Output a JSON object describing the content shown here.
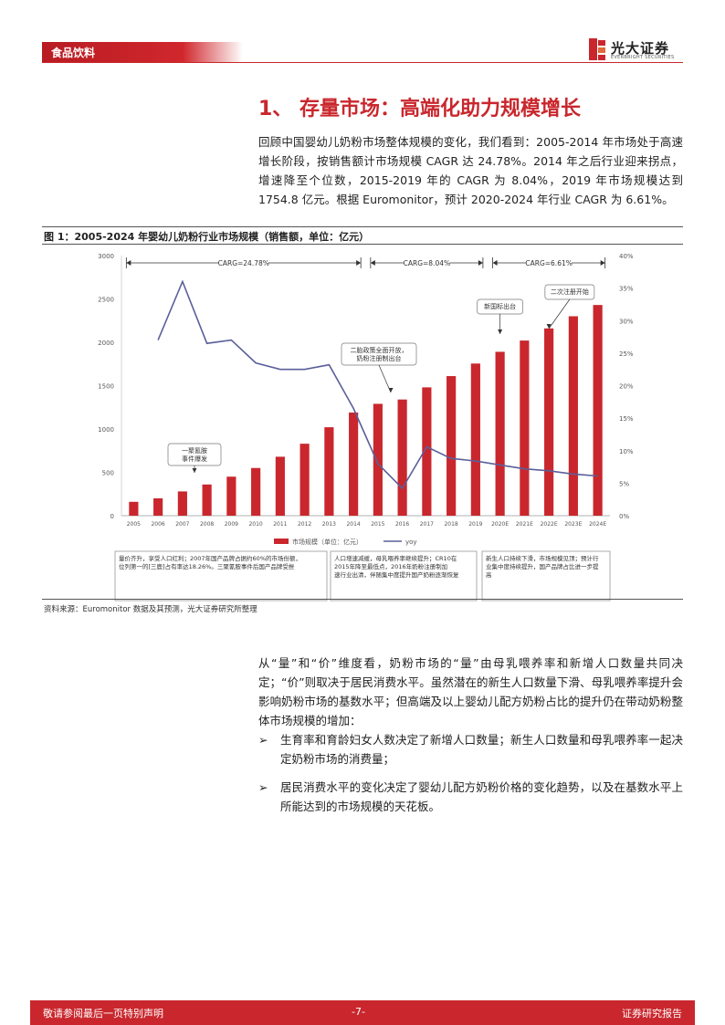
{
  "header": {
    "category": "食品饮料",
    "logo_name": "光大证券",
    "logo_sub": "EVERBRIGHT SECURITIES"
  },
  "section": {
    "title": "1、 存量市场：高端化助力规模增长"
  },
  "intro_paragraph": "回顾中国婴幼儿奶粉市场整体规模的变化，我们看到：2005-2014 年市场处于高速增长阶段，按销售额计市场规模 CAGR 达 24.78%。2014 年之后行业迎来拐点，增速降至个位数，2015-2019 年的 CAGR 为 8.04%，2019 年市场规模达到 1754.8 亿元。根据 Euromonitor，预计 2020-2024 年行业 CAGR 为 6.61%。",
  "figure": {
    "title": "图 1：2005-2024 年婴幼儿奶粉行业市场规模（销售额，单位：亿元）",
    "source": "资料来源：Euromonitor 数据及其预测，光大证券研究所整理"
  },
  "chart_data": {
    "type": "bar",
    "categories": [
      "2005",
      "2006",
      "2007",
      "2008",
      "2009",
      "2010",
      "2011",
      "2012",
      "2013",
      "2014",
      "2015",
      "2016",
      "2017",
      "2018",
      "2019",
      "2020E",
      "2021E",
      "2022E",
      "2023E",
      "2024E"
    ],
    "series": [
      {
        "name": "市场规模（单位：亿元）",
        "type": "bar",
        "color": "#c9272d",
        "values": [
          160,
          200,
          280,
          360,
          450,
          550,
          680,
          830,
          1020,
          1190,
          1290,
          1340,
          1480,
          1610,
          1754.8,
          1890,
          2020,
          2160,
          2300,
          2430
        ]
      },
      {
        "name": "yoy",
        "type": "line",
        "axis": "right",
        "color": "#5b5f9a",
        "values": [
          null,
          27,
          36,
          26.5,
          27,
          23.5,
          22.5,
          22.5,
          23.2,
          16.5,
          8,
          4.2,
          10.6,
          8.8,
          8.4,
          7.8,
          7.2,
          6.9,
          6.4,
          6.1
        ]
      }
    ],
    "ylim": [
      0,
      3000
    ],
    "yticks": [
      "0",
      "500",
      "1000",
      "1500",
      "2000",
      "2500",
      "3000"
    ],
    "y2lim": [
      0,
      40
    ],
    "y2ticks": [
      "0%",
      "5%",
      "10%",
      "15%",
      "20%",
      "25%",
      "30%",
      "35%",
      "40%"
    ],
    "cagr_labels": [
      {
        "label": "CARG=24.78%",
        "from": "2005",
        "to": "2014"
      },
      {
        "label": "CARG=8.04%",
        "from": "2015",
        "to": "2019"
      },
      {
        "label": "CARG=6.61%",
        "from": "2020E",
        "to": "2024E"
      }
    ],
    "callouts": [
      "一聚氰胺事件爆发",
      "二胎政策全面开放，奶粉注册制出台",
      "新国标出台",
      "二次注册开始"
    ],
    "notes": [
      "量价齐升，享受人口红利；2007年国产品牌占据约60%的市场份额，位列第一的[三鹿]占有率达18.26%。三聚氰胺事件后国产品牌受挫",
      "人口增速减缓，母乳喂养率继续提升；CR10在2015年降至最低点，2016年奶粉注册制加速行业出清，伴随集中度提升国产奶粉逐渐恢复",
      "新生人口持续下滑，市场规模见顶；预计行业集中度持续提升，国产品牌占比进一步提高"
    ],
    "legend": "bottom"
  },
  "body_paragraph": "从“量”和“价”维度看，奶粉市场的“量”由母乳喂养率和新增人口数量共同决定；“价”则取决于居民消费水平。虽然潜在的新生人口数量下滑、母乳喂养率提升会影响奶粉市场的基数水平；但高端及以上婴幼儿配方奶粉占比的提升仍在带动奶粉整体市场规模的增加：",
  "bullets": [
    {
      "marker": "➢",
      "text": "生育率和育龄妇女人数决定了新增人口数量；新生人口数量和母乳喂养率一起决定奶粉市场的消费量；"
    },
    {
      "marker": "➢",
      "text": "居民消费水平的变化决定了婴幼儿配方奶粉价格的变化趋势，以及在基数水平上所能达到的市场规模的天花板。"
    }
  ],
  "footer": {
    "left": "敬请参阅最后一页特别声明",
    "page": "-7-",
    "right": "证券研究报告"
  }
}
